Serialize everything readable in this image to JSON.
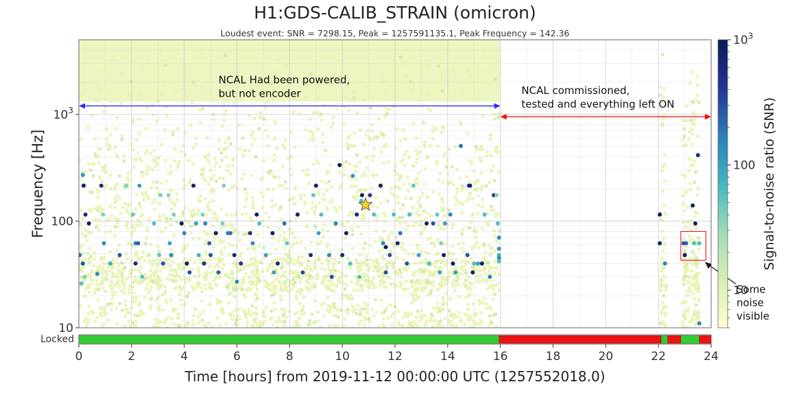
{
  "chart_data": {
    "type": "scatter",
    "title": "H1:GDS-CALIB_STRAIN (omicron)",
    "subtitle": "Loudest event: SNR = 7298.15, Peak = 1257591135.1, Peak Frequency = 142.36",
    "xlabel": "Time [hours] from 2019-11-12 00:00:00 UTC (1257552018.0)",
    "ylabel": "Frequency [Hz]",
    "xlim": [
      0,
      24
    ],
    "ylim": [
      10,
      5000
    ],
    "yscale": "log",
    "grid": true,
    "x_ticks": [
      "0",
      "2",
      "4",
      "6",
      "8",
      "10",
      "12",
      "14",
      "16",
      "18",
      "20",
      "22",
      "24"
    ],
    "y_ticks": [
      "10",
      "100",
      "10^3"
    ],
    "colorbar": {
      "label": "Signal-to-noise ratio (SNR)",
      "scale": "log",
      "range": [
        5,
        1000
      ],
      "ticks": [
        "10",
        "100",
        "10^3"
      ],
      "colors": [
        "#ffffcc",
        "#d6efb3",
        "#a1dab4",
        "#41b6c4",
        "#2c7fb8",
        "#253494",
        "#081d58"
      ]
    },
    "background_snr_color": "#e8f5b5",
    "loudest_event": {
      "x": 10.88,
      "y": 142.36,
      "snr": 7298.15,
      "marker": "star",
      "color": "#f5d327"
    },
    "events": [
      {
        "x": 0.03,
        "y": 48,
        "snr": 200
      },
      {
        "x": 0.1,
        "y": 26,
        "snr": 60
      },
      {
        "x": 0.15,
        "y": 270,
        "snr": 120
      },
      {
        "x": 0.15,
        "y": 40,
        "snr": 300
      },
      {
        "x": 0.18,
        "y": 215,
        "snr": 800
      },
      {
        "x": 0.22,
        "y": 30,
        "snr": 40
      },
      {
        "x": 0.25,
        "y": 115,
        "snr": 600
      },
      {
        "x": 0.38,
        "y": 95,
        "snr": 900
      },
      {
        "x": 0.7,
        "y": 32,
        "snr": 150
      },
      {
        "x": 0.85,
        "y": 215,
        "snr": 600
      },
      {
        "x": 0.92,
        "y": 115,
        "snr": 40
      },
      {
        "x": 0.95,
        "y": 62,
        "snr": 150
      },
      {
        "x": 1.2,
        "y": 40,
        "snr": 80
      },
      {
        "x": 1.55,
        "y": 48,
        "snr": 300
      },
      {
        "x": 1.8,
        "y": 215,
        "snr": 40
      },
      {
        "x": 2.05,
        "y": 115,
        "snr": 50
      },
      {
        "x": 2.15,
        "y": 40,
        "snr": 600
      },
      {
        "x": 2.15,
        "y": 62,
        "snr": 150
      },
      {
        "x": 2.25,
        "y": 62,
        "snr": 250
      },
      {
        "x": 2.3,
        "y": 215,
        "snr": 100
      },
      {
        "x": 2.4,
        "y": 30,
        "snr": 60
      },
      {
        "x": 2.85,
        "y": 95,
        "snr": 60
      },
      {
        "x": 3.05,
        "y": 48,
        "snr": 50
      },
      {
        "x": 3.1,
        "y": 175,
        "snr": 40
      },
      {
        "x": 3.2,
        "y": 40,
        "snr": 300
      },
      {
        "x": 3.4,
        "y": 175,
        "snr": 35
      },
      {
        "x": 3.45,
        "y": 62,
        "snr": 100
      },
      {
        "x": 3.5,
        "y": 48,
        "snr": 150
      },
      {
        "x": 3.6,
        "y": 115,
        "snr": 40
      },
      {
        "x": 3.9,
        "y": 95,
        "snr": 900
      },
      {
        "x": 4.0,
        "y": 77,
        "snr": 150
      },
      {
        "x": 4.1,
        "y": 40,
        "snr": 900
      },
      {
        "x": 4.2,
        "y": 33,
        "snr": 300
      },
      {
        "x": 4.35,
        "y": 215,
        "snr": 800
      },
      {
        "x": 4.45,
        "y": 95,
        "snr": 100
      },
      {
        "x": 4.55,
        "y": 48,
        "snr": 70
      },
      {
        "x": 4.7,
        "y": 115,
        "snr": 40
      },
      {
        "x": 4.75,
        "y": 40,
        "snr": 500
      },
      {
        "x": 4.8,
        "y": 95,
        "snr": 150
      },
      {
        "x": 4.95,
        "y": 62,
        "snr": 250
      },
      {
        "x": 5.0,
        "y": 48,
        "snr": 300
      },
      {
        "x": 5.2,
        "y": 77,
        "snr": 900
      },
      {
        "x": 5.3,
        "y": 33,
        "snr": 250
      },
      {
        "x": 5.45,
        "y": 95,
        "snr": 40
      },
      {
        "x": 5.5,
        "y": 215,
        "snr": 40
      },
      {
        "x": 5.65,
        "y": 77,
        "snr": 150
      },
      {
        "x": 5.75,
        "y": 77,
        "snr": 200
      },
      {
        "x": 5.9,
        "y": 48,
        "snr": 700
      },
      {
        "x": 6.0,
        "y": 27,
        "snr": 150
      },
      {
        "x": 6.15,
        "y": 40,
        "snr": 400
      },
      {
        "x": 6.5,
        "y": 77,
        "snr": 500
      },
      {
        "x": 6.6,
        "y": 62,
        "snr": 150
      },
      {
        "x": 6.75,
        "y": 115,
        "snr": 900
      },
      {
        "x": 6.85,
        "y": 95,
        "snr": 60
      },
      {
        "x": 7.1,
        "y": 48,
        "snr": 100
      },
      {
        "x": 7.35,
        "y": 77,
        "snr": 900
      },
      {
        "x": 7.4,
        "y": 33,
        "snr": 100
      },
      {
        "x": 7.55,
        "y": 40,
        "snr": 600
      },
      {
        "x": 7.8,
        "y": 95,
        "snr": 200
      },
      {
        "x": 7.9,
        "y": 62,
        "snr": 50
      },
      {
        "x": 8.3,
        "y": 115,
        "snr": 800
      },
      {
        "x": 8.5,
        "y": 33,
        "snr": 300
      },
      {
        "x": 8.8,
        "y": 48,
        "snr": 600
      },
      {
        "x": 8.9,
        "y": 175,
        "snr": 50
      },
      {
        "x": 9.0,
        "y": 215,
        "snr": 800
      },
      {
        "x": 9.1,
        "y": 77,
        "snr": 100
      },
      {
        "x": 9.2,
        "y": 115,
        "snr": 60
      },
      {
        "x": 9.5,
        "y": 48,
        "snr": 150
      },
      {
        "x": 9.6,
        "y": 30,
        "snr": 300
      },
      {
        "x": 9.75,
        "y": 95,
        "snr": 150
      },
      {
        "x": 9.9,
        "y": 335,
        "snr": 900
      },
      {
        "x": 10.0,
        "y": 48,
        "snr": 700
      },
      {
        "x": 10.15,
        "y": 77,
        "snr": 800
      },
      {
        "x": 10.3,
        "y": 40,
        "snr": 60
      },
      {
        "x": 10.4,
        "y": 265,
        "snr": 120
      },
      {
        "x": 10.55,
        "y": 115,
        "snr": 700
      },
      {
        "x": 10.65,
        "y": 30,
        "snr": 60
      },
      {
        "x": 10.72,
        "y": 155,
        "snr": 60
      },
      {
        "x": 10.75,
        "y": 175,
        "snr": 900
      },
      {
        "x": 11.05,
        "y": 175,
        "snr": 400
      },
      {
        "x": 11.2,
        "y": 115,
        "snr": 60
      },
      {
        "x": 11.45,
        "y": 215,
        "snr": 900
      },
      {
        "x": 11.55,
        "y": 62,
        "snr": 150
      },
      {
        "x": 11.65,
        "y": 57,
        "snr": 900
      },
      {
        "x": 11.65,
        "y": 33,
        "snr": 300
      },
      {
        "x": 11.8,
        "y": 48,
        "snr": 300
      },
      {
        "x": 11.95,
        "y": 115,
        "snr": 60
      },
      {
        "x": 12.1,
        "y": 62,
        "snr": 700
      },
      {
        "x": 12.2,
        "y": 77,
        "snr": 200
      },
      {
        "x": 12.45,
        "y": 40,
        "snr": 300
      },
      {
        "x": 12.55,
        "y": 115,
        "snr": 60
      },
      {
        "x": 12.7,
        "y": 215,
        "snr": 50
      },
      {
        "x": 12.9,
        "y": 48,
        "snr": 100
      },
      {
        "x": 13.2,
        "y": 95,
        "snr": 800
      },
      {
        "x": 13.3,
        "y": 40,
        "snr": 60
      },
      {
        "x": 13.45,
        "y": 95,
        "snr": 300
      },
      {
        "x": 13.6,
        "y": 115,
        "snr": 50
      },
      {
        "x": 13.7,
        "y": 33,
        "snr": 100
      },
      {
        "x": 13.75,
        "y": 62,
        "snr": 40
      },
      {
        "x": 13.85,
        "y": 48,
        "snr": 900
      },
      {
        "x": 13.9,
        "y": 95,
        "snr": 100
      },
      {
        "x": 14.1,
        "y": 115,
        "snr": 150
      },
      {
        "x": 14.2,
        "y": 40,
        "snr": 900
      },
      {
        "x": 14.3,
        "y": 33,
        "snr": 100
      },
      {
        "x": 14.5,
        "y": 505,
        "snr": 200
      },
      {
        "x": 14.75,
        "y": 48,
        "snr": 300
      },
      {
        "x": 14.8,
        "y": 215,
        "snr": 300
      },
      {
        "x": 14.85,
        "y": 215,
        "snr": 800
      },
      {
        "x": 14.95,
        "y": 33,
        "snr": 800
      },
      {
        "x": 15.0,
        "y": 40,
        "snr": 60
      },
      {
        "x": 15.15,
        "y": 40,
        "snr": 100
      },
      {
        "x": 15.3,
        "y": 40,
        "snr": 800
      },
      {
        "x": 15.4,
        "y": 115,
        "snr": 60
      },
      {
        "x": 15.6,
        "y": 30,
        "snr": 150
      },
      {
        "x": 15.75,
        "y": 175,
        "snr": 500
      },
      {
        "x": 15.85,
        "y": 175,
        "snr": 40
      },
      {
        "x": 15.9,
        "y": 95,
        "snr": 60
      },
      {
        "x": 15.95,
        "y": 70,
        "snr": 150
      },
      {
        "x": 15.95,
        "y": 55,
        "snr": 120
      },
      {
        "x": 15.95,
        "y": 48,
        "snr": 80
      },
      {
        "x": 15.95,
        "y": 45,
        "snr": 150
      },
      {
        "x": 15.95,
        "y": 42,
        "snr": 60
      },
      {
        "x": 22.05,
        "y": 115,
        "snr": 900
      },
      {
        "x": 22.05,
        "y": 62,
        "snr": 800
      },
      {
        "x": 22.25,
        "y": 40,
        "snr": 150
      },
      {
        "x": 22.95,
        "y": 62,
        "snr": 300
      },
      {
        "x": 23.0,
        "y": 48,
        "snr": 900
      },
      {
        "x": 23.05,
        "y": 62,
        "snr": 250
      },
      {
        "x": 23.35,
        "y": 62,
        "snr": 60
      },
      {
        "x": 23.3,
        "y": 140,
        "snr": 900
      },
      {
        "x": 23.4,
        "y": 95,
        "snr": 900
      },
      {
        "x": 23.5,
        "y": 415,
        "snr": 600
      },
      {
        "x": 23.55,
        "y": 62,
        "snr": 60
      },
      {
        "x": 23.55,
        "y": 11,
        "snr": 150
      }
    ],
    "annotations": [
      {
        "text_lines": [
          "NCAL Had been powered,",
          "but not encoder"
        ],
        "span": [
          0,
          16
        ],
        "y": 1200,
        "arrow_color": "#2b2bff"
      },
      {
        "text_lines": [
          "NCAL commissioned,",
          "tested and everything left ON"
        ],
        "span": [
          16,
          24
        ],
        "y": 950,
        "arrow_color": "#ff0000"
      },
      {
        "text_lines": [
          "Some",
          "noise",
          "visible"
        ],
        "box_x": [
          22.85,
          24.0
        ],
        "box_y": [
          43,
          80
        ],
        "box_color": "#ff0000"
      }
    ],
    "state_bar": {
      "label": "Locked",
      "segments": [
        {
          "start": 0,
          "end": 15.95,
          "state": "locked"
        },
        {
          "start": 15.95,
          "end": 22.1,
          "state": "unlocked"
        },
        {
          "start": 22.1,
          "end": 22.35,
          "state": "locked"
        },
        {
          "start": 22.35,
          "end": 22.85,
          "state": "unlocked"
        },
        {
          "start": 22.85,
          "end": 23.55,
          "state": "locked"
        },
        {
          "start": 23.55,
          "end": 24,
          "state": "unlocked"
        }
      ],
      "colors": {
        "locked": "#33cc33",
        "unlocked": "#ee1111"
      }
    }
  }
}
